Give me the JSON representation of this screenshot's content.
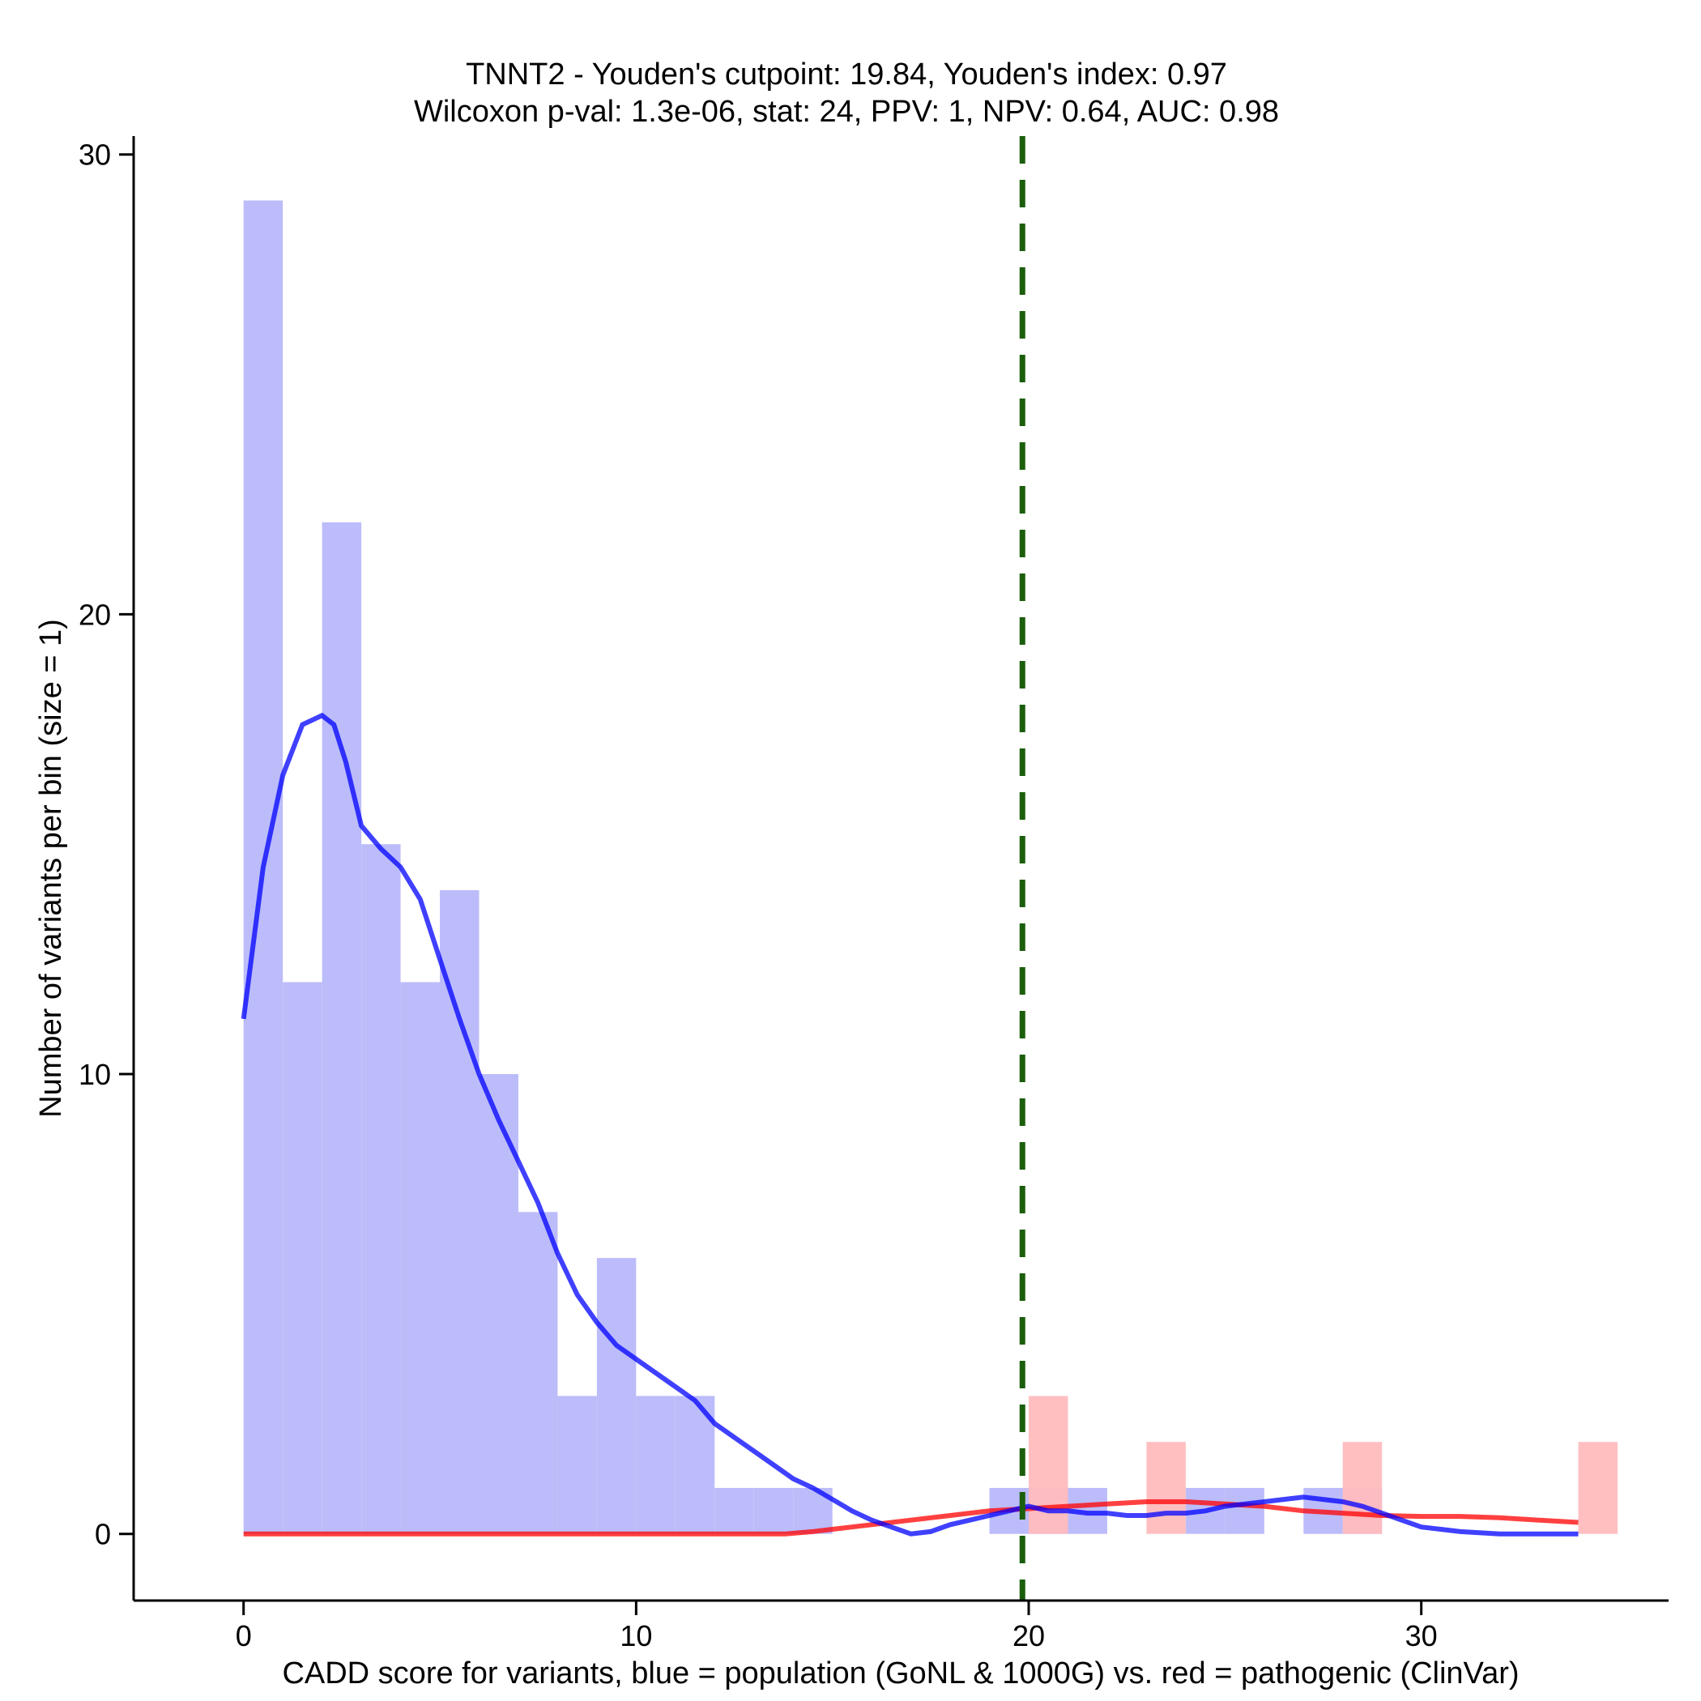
{
  "chart_data": {
    "type": "histogram",
    "title": "TNNT2 - Youden's cutpoint: 19.84, Youden's index: 0.97",
    "subtitle": "Wilcoxon p-val: 1.3e-06, stat: 24, PPV: 1, NPV: 0.64, AUC: 0.98",
    "xlabel": "CADD score for variants, blue = population (GoNL & 1000G) vs. red = pathogenic (ClinVar)",
    "ylabel": "Number of variants per bin (size = 1)",
    "xlim": [
      -2.8,
      36.3
    ],
    "ylim": [
      -1.45,
      30.4
    ],
    "x_ticks": [
      0,
      10,
      20,
      30
    ],
    "y_ticks": [
      0,
      10,
      20,
      30
    ],
    "bin_width": 1,
    "cutpoint": 19.84,
    "cutpoint_color": "#1b5e0c",
    "series": [
      {
        "name": "population (GoNL & 1000G)",
        "color": "#0000ff",
        "bar_color": "#bcbcfb",
        "bins": [
          {
            "x": 0,
            "count": 29
          },
          {
            "x": 1,
            "count": 12
          },
          {
            "x": 2,
            "count": 22
          },
          {
            "x": 3,
            "count": 15
          },
          {
            "x": 4,
            "count": 12
          },
          {
            "x": 5,
            "count": 14
          },
          {
            "x": 6,
            "count": 10
          },
          {
            "x": 7,
            "count": 7
          },
          {
            "x": 8,
            "count": 3
          },
          {
            "x": 9,
            "count": 6
          },
          {
            "x": 10,
            "count": 3
          },
          {
            "x": 11,
            "count": 3
          },
          {
            "x": 12,
            "count": 1
          },
          {
            "x": 13,
            "count": 1
          },
          {
            "x": 14,
            "count": 1
          },
          {
            "x": 19,
            "count": 1
          },
          {
            "x": 20,
            "count": 1
          },
          {
            "x": 21,
            "count": 1
          },
          {
            "x": 24,
            "count": 1
          },
          {
            "x": 25,
            "count": 1
          },
          {
            "x": 27,
            "count": 1
          },
          {
            "x": 28,
            "count": 1
          }
        ],
        "density": [
          [
            0,
            11.2
          ],
          [
            0.5,
            14.5
          ],
          [
            1,
            16.5
          ],
          [
            1.5,
            17.6
          ],
          [
            2,
            17.8
          ],
          [
            2.3,
            17.6
          ],
          [
            2.6,
            16.8
          ],
          [
            3,
            15.4
          ],
          [
            3.5,
            14.9
          ],
          [
            4,
            14.5
          ],
          [
            4.5,
            13.8
          ],
          [
            5,
            12.5
          ],
          [
            5.5,
            11.2
          ],
          [
            6,
            10.0
          ],
          [
            6.5,
            9.0
          ],
          [
            7,
            8.1
          ],
          [
            7.5,
            7.2
          ],
          [
            8,
            6.1
          ],
          [
            8.5,
            5.2
          ],
          [
            9,
            4.6
          ],
          [
            9.5,
            4.1
          ],
          [
            10,
            3.8
          ],
          [
            10.5,
            3.5
          ],
          [
            11,
            3.2
          ],
          [
            11.5,
            2.9
          ],
          [
            12,
            2.4
          ],
          [
            12.5,
            2.1
          ],
          [
            13,
            1.8
          ],
          [
            13.5,
            1.5
          ],
          [
            14,
            1.2
          ],
          [
            14.5,
            1.0
          ],
          [
            15,
            0.75
          ],
          [
            15.5,
            0.5
          ],
          [
            16,
            0.3
          ],
          [
            16.5,
            0.15
          ],
          [
            17,
            0.0
          ],
          [
            17.5,
            0.05
          ],
          [
            18,
            0.2
          ],
          [
            18.5,
            0.3
          ],
          [
            19,
            0.4
          ],
          [
            19.5,
            0.5
          ],
          [
            20,
            0.6
          ],
          [
            20.5,
            0.5
          ],
          [
            21,
            0.5
          ],
          [
            21.5,
            0.45
          ],
          [
            22,
            0.45
          ],
          [
            22.5,
            0.4
          ],
          [
            23,
            0.4
          ],
          [
            23.5,
            0.45
          ],
          [
            24,
            0.45
          ],
          [
            24.5,
            0.5
          ],
          [
            25,
            0.6
          ],
          [
            25.5,
            0.65
          ],
          [
            26,
            0.7
          ],
          [
            26.5,
            0.75
          ],
          [
            27,
            0.8
          ],
          [
            27.5,
            0.75
          ],
          [
            28,
            0.7
          ],
          [
            28.5,
            0.6
          ],
          [
            29,
            0.45
          ],
          [
            29.5,
            0.3
          ],
          [
            30,
            0.15
          ],
          [
            30.5,
            0.1
          ],
          [
            31,
            0.05
          ],
          [
            32,
            0.0
          ],
          [
            33,
            0.0
          ],
          [
            34,
            0.0
          ]
        ]
      },
      {
        "name": "pathogenic (ClinVar)",
        "color": "#ff0000",
        "bar_color": "#ffbcbe",
        "bins": [
          {
            "x": 20,
            "count": 3
          },
          {
            "x": 23,
            "count": 2
          },
          {
            "x": 28,
            "count": 2
          },
          {
            "x": 34,
            "count": 2
          }
        ],
        "density": [
          [
            0,
            0.0
          ],
          [
            13.8,
            0.0
          ],
          [
            14.5,
            0.05
          ],
          [
            15,
            0.1
          ],
          [
            16,
            0.2
          ],
          [
            17,
            0.3
          ],
          [
            18,
            0.4
          ],
          [
            19,
            0.5
          ],
          [
            20,
            0.55
          ],
          [
            21,
            0.6
          ],
          [
            22,
            0.65
          ],
          [
            23,
            0.7
          ],
          [
            24,
            0.7
          ],
          [
            25,
            0.65
          ],
          [
            26,
            0.6
          ],
          [
            27,
            0.5
          ],
          [
            28,
            0.45
          ],
          [
            29,
            0.4
          ],
          [
            30,
            0.38
          ],
          [
            31,
            0.38
          ],
          [
            32,
            0.35
          ],
          [
            33,
            0.3
          ],
          [
            34,
            0.25
          ]
        ]
      }
    ]
  }
}
